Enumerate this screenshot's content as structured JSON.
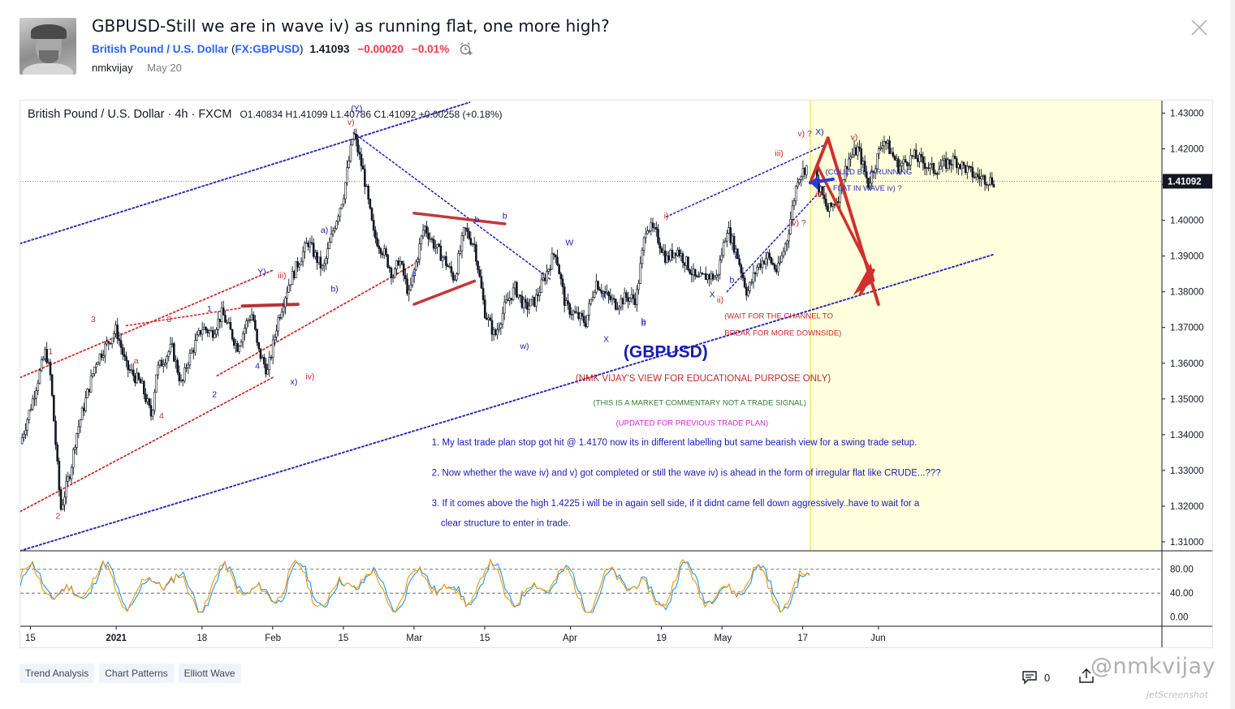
{
  "idea": {
    "title": "GBPUSD-Still we are in wave iv) as running flat, one more high?",
    "symbol_name": "British Pound / U.S. Dollar",
    "symbol_open": "(",
    "symbol_ticker": "FX:GBPUSD",
    "symbol_close": ")",
    "price": "1.41093",
    "change": "−0.00020",
    "change_pct": "−0.01%",
    "author": "nmkvijay",
    "date": "May 20"
  },
  "chart_legend": {
    "instrument": "British Pound / U.S. Dollar · 4h · FXCM",
    "o_label": "O",
    "o": "1.40834",
    "h_label": "H",
    "h": "1.41099",
    "l_label": "L",
    "l": "1.40786",
    "c_label": "C",
    "c": "1.41092",
    "change": "+0.00258 (+0.18%)"
  },
  "chart_data": {
    "type": "line",
    "title": "",
    "price_axis": [
      1.43,
      1.42,
      1.41,
      1.4,
      1.39,
      1.38,
      1.37,
      1.36,
      1.35,
      1.34,
      1.33,
      1.32,
      1.31
    ],
    "price_axis_labels": [
      "1.43000",
      "1.42000",
      "1.41000",
      "1.40000",
      "1.39000",
      "1.38000",
      "1.37000",
      "1.36000",
      "1.35000",
      "1.34000",
      "1.33000",
      "1.32000",
      "1.31000"
    ],
    "ylim": [
      1.3075,
      1.4335
    ],
    "last_price_label": "1.41092",
    "last_price": 1.41092,
    "time_axis_labels": [
      "15",
      "2021",
      "18",
      "Feb",
      "15",
      "Mar",
      "15",
      "Apr",
      "19",
      "May",
      "17",
      "Jun"
    ],
    "x_label_days": [
      -17,
      0,
      17,
      31,
      45,
      59,
      73,
      90,
      108,
      120,
      136,
      151
    ],
    "xlim": [
      -19,
      207
    ],
    "price_series": {
      "name": "",
      "x_days": [
        -19,
        -17,
        -14,
        -13,
        -11,
        -9,
        -8,
        -6,
        -4,
        0,
        2,
        5,
        7,
        8,
        11,
        13,
        14,
        17,
        19,
        21,
        24,
        26,
        27,
        28,
        30,
        32,
        34,
        36,
        38,
        40,
        41,
        43,
        45,
        47,
        49,
        51,
        53,
        55,
        56,
        58,
        59,
        61,
        63,
        65,
        67,
        69,
        71,
        73,
        75,
        77,
        79,
        81,
        83,
        85,
        87,
        89,
        91,
        93,
        95,
        97,
        99,
        101,
        103,
        105,
        107,
        109,
        111,
        113,
        115,
        117,
        119,
        121,
        123,
        125,
        127,
        129,
        131,
        133,
        135,
        137,
        139,
        141,
        143,
        145,
        147,
        149,
        152,
        155,
        158,
        162,
        166,
        170,
        174
      ],
      "close": [
        1.3375,
        1.3475,
        1.3635,
        1.356,
        1.319,
        1.3305,
        1.3395,
        1.35,
        1.3605,
        1.3695,
        1.359,
        1.354,
        1.345,
        1.358,
        1.3645,
        1.3535,
        1.36,
        1.37,
        1.3685,
        1.374,
        1.3645,
        1.372,
        1.374,
        1.364,
        1.3575,
        1.372,
        1.3815,
        1.388,
        1.394,
        1.3885,
        1.386,
        1.3975,
        1.407,
        1.4245,
        1.413,
        1.396,
        1.391,
        1.384,
        1.3895,
        1.379,
        1.3855,
        1.3985,
        1.393,
        1.389,
        1.3835,
        1.3975,
        1.393,
        1.3745,
        1.3675,
        1.376,
        1.381,
        1.3755,
        1.3775,
        1.3845,
        1.3915,
        1.376,
        1.3735,
        1.3715,
        1.383,
        1.379,
        1.3765,
        1.3785,
        1.378,
        1.399,
        1.396,
        1.389,
        1.392,
        1.388,
        1.383,
        1.3845,
        1.384,
        1.398,
        1.3905,
        1.3795,
        1.387,
        1.39,
        1.3855,
        1.3955,
        1.412,
        1.4155,
        1.41,
        1.4025,
        1.4065,
        1.417,
        1.42,
        1.41,
        1.423,
        1.415,
        1.418,
        1.414,
        1.417,
        1.4125,
        1.4109
      ]
    },
    "oscillator": {
      "levels": [
        80,
        40,
        0
      ],
      "level_labels": [
        "80.00",
        "40.00",
        "0.00"
      ]
    },
    "wave_labels": [
      "(Y)",
      "v)",
      "iii)",
      "i)",
      "3",
      "1",
      "Y)",
      "b",
      "W",
      "a",
      "a",
      "a)",
      "b)",
      "a",
      "b",
      "X",
      "x)",
      "iv)",
      "w)",
      "2",
      "4",
      "1",
      "2",
      "3",
      "4",
      "X",
      "ii)",
      "b",
      "iv) ?",
      "iii)",
      "v) ?",
      "X)",
      "v)",
      "iv)",
      "b",
      "b",
      "a"
    ],
    "annotations": {
      "symbol_big": "(GBPUSD)",
      "disclaimer": "(NMK VIJAY'S VIEW FOR EDUCATIONAL PURPOSE ONLY)",
      "not_signal": "(THIS IS A MARKET COMMENTARY NOT A TRADE SIGNAL)",
      "updated": "(UPDATED FOR PREVIOUS TRADE PLAN)",
      "wait_channel_1": "(WAIT FOR THE CHANNEL TO",
      "wait_channel_2": "BREAK FOR MORE DOWNSIDE)",
      "running_flat_1": "(COULD BE A RUNNING",
      "running_flat_2": "FLAT IN WAVE iv) ?",
      "note_1": "1. My last trade plan stop got hit @ 1.4170 now its in different labelling but same bearish view for a swing trade setup.",
      "note_2": "2. Now whether the wave iv) and v) got completed or still the wave iv) is ahead in the form of irregular flat like CRUDE...???",
      "note_3a": "3. If it comes above the high 1.4225 i will be in again sell side, if it didnt came fell down aggressively..have to wait for a",
      "note_3b": "clear structure to enter in trade."
    },
    "colors": {
      "candle": "#131722",
      "red_line": "#c62828",
      "blue_line": "#2b2bb5",
      "projection_bg": "#ffffdd",
      "projection_edge": "#e9e14a",
      "osc_blue": "#2196f3",
      "osc_orange": "#ff9800",
      "label_blue": "#1a1ab5",
      "label_red": "#c62828"
    }
  },
  "tags": [
    "Trend Analysis",
    "Chart Patterns",
    "Elliott Wave"
  ],
  "comments_count": "0",
  "watermark": "@nmkvijay",
  "watermark2": "jetScreenshot"
}
